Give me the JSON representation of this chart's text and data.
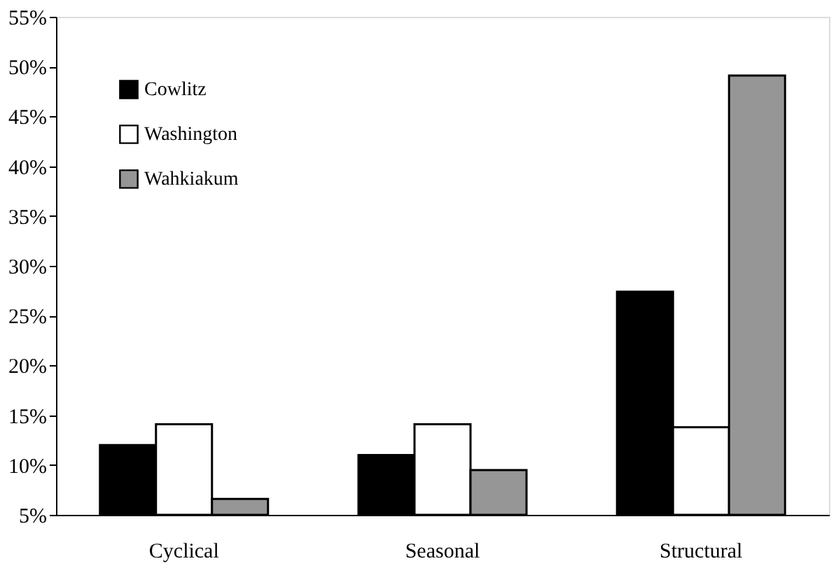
{
  "chart_data": {
    "type": "bar",
    "categories": [
      "Cyclical",
      "Seasonal",
      "Structural"
    ],
    "series": [
      {
        "name": "Cowlitz",
        "color": "#000000",
        "values": [
          12.0,
          11.0,
          27.4
        ]
      },
      {
        "name": "Washington",
        "color": "#ffffff",
        "values": [
          14.1,
          14.1,
          13.8
        ]
      },
      {
        "name": "Wahkiakum",
        "color": "#969696",
        "values": [
          6.6,
          9.5,
          49.1
        ]
      }
    ],
    "ylim": [
      5,
      55
    ],
    "yticks": [
      {
        "value": 5,
        "label": "5%"
      },
      {
        "value": 10,
        "label": "10%"
      },
      {
        "value": 15,
        "label": "15%"
      },
      {
        "value": 20,
        "label": "20%"
      },
      {
        "value": 25,
        "label": "25%"
      },
      {
        "value": 30,
        "label": "30%"
      },
      {
        "value": 35,
        "label": "35%"
      },
      {
        "value": 40,
        "label": "40%"
      },
      {
        "value": 45,
        "label": "45%"
      },
      {
        "value": 50,
        "label": "50%"
      },
      {
        "value": 55,
        "label": "55%"
      }
    ],
    "grid": false,
    "legend": "top left"
  }
}
